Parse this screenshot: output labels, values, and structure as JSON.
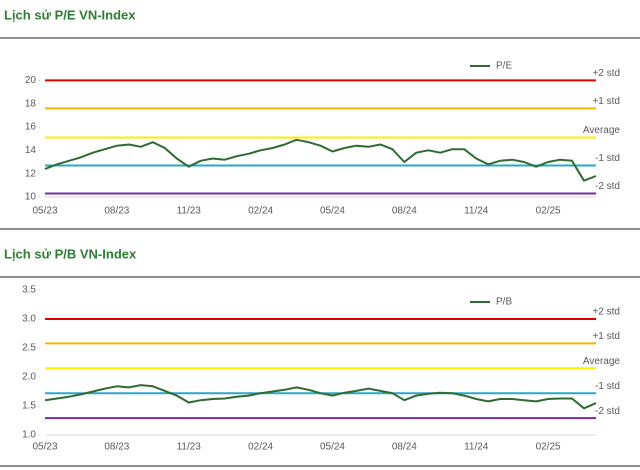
{
  "chart_data": [
    {
      "type": "line",
      "title": "Lịch sử P/E VN-Index",
      "categories": [
        "05/23",
        null,
        null,
        null,
        null,
        null,
        "08/23",
        null,
        null,
        null,
        null,
        null,
        "11/23",
        null,
        null,
        null,
        null,
        null,
        "02/24",
        null,
        null,
        null,
        null,
        null,
        "05/24",
        null,
        null,
        null,
        null,
        null,
        "08/24",
        null,
        null,
        null,
        null,
        null,
        "11/24",
        null,
        null,
        null,
        null,
        null,
        "02/25",
        null,
        null,
        null,
        null
      ],
      "series": [
        {
          "name": "P/E",
          "color": "#2e6b30",
          "values": [
            12.4,
            12.8,
            13.1,
            13.4,
            13.8,
            14.1,
            14.4,
            14.5,
            14.3,
            14.7,
            14.2,
            13.3,
            12.6,
            13.1,
            13.3,
            13.2,
            13.5,
            13.7,
            14.0,
            14.2,
            14.5,
            14.9,
            14.7,
            14.4,
            13.9,
            14.2,
            14.4,
            14.3,
            14.5,
            14.1,
            13.0,
            13.8,
            14.0,
            13.8,
            14.1,
            14.1,
            13.3,
            12.8,
            13.1,
            13.2,
            13.0,
            12.6,
            13.0,
            13.2,
            13.1,
            11.4,
            11.8
          ]
        }
      ],
      "reference_lines": [
        {
          "label": "+2 std",
          "value": 20,
          "color": "#e00000"
        },
        {
          "label": "+1 std",
          "value": 17.6,
          "color": "#f5b800"
        },
        {
          "label": "Average",
          "value": 15.1,
          "color": "#ffee00"
        },
        {
          "label": "-1 std",
          "value": 12.7,
          "color": "#2aa7c9"
        },
        {
          "label": "-2 std",
          "value": 10.3,
          "color": "#7030a0"
        }
      ],
      "ylim": [
        10,
        22
      ],
      "yticks": [
        10,
        12,
        14,
        16,
        18,
        20
      ]
    },
    {
      "type": "line",
      "title": "Lịch sử P/B VN-Index",
      "categories": [
        "05/23",
        null,
        null,
        null,
        null,
        null,
        "08/23",
        null,
        null,
        null,
        null,
        null,
        "11/23",
        null,
        null,
        null,
        null,
        null,
        "02/24",
        null,
        null,
        null,
        null,
        null,
        "05/24",
        null,
        null,
        null,
        null,
        null,
        "08/24",
        null,
        null,
        null,
        null,
        null,
        "11/24",
        null,
        null,
        null,
        null,
        null,
        "02/25",
        null,
        null,
        null,
        null
      ],
      "series": [
        {
          "name": "P/B",
          "color": "#2e6b30",
          "values": [
            1.6,
            1.63,
            1.66,
            1.7,
            1.75,
            1.8,
            1.84,
            1.82,
            1.86,
            1.84,
            1.76,
            1.68,
            1.56,
            1.6,
            1.62,
            1.63,
            1.66,
            1.68,
            1.72,
            1.75,
            1.78,
            1.82,
            1.78,
            1.72,
            1.68,
            1.73,
            1.76,
            1.8,
            1.76,
            1.72,
            1.6,
            1.68,
            1.71,
            1.73,
            1.72,
            1.68,
            1.62,
            1.58,
            1.62,
            1.62,
            1.6,
            1.58,
            1.62,
            1.63,
            1.63,
            1.46,
            1.55
          ]
        }
      ],
      "reference_lines": [
        {
          "label": "+2 std",
          "value": 3.0,
          "color": "#e00000"
        },
        {
          "label": "+1 std",
          "value": 2.58,
          "color": "#f5b800"
        },
        {
          "label": "Average",
          "value": 2.15,
          "color": "#ffee00"
        },
        {
          "label": "-1 std",
          "value": 1.72,
          "color": "#2aa7c9"
        },
        {
          "label": "-2 std",
          "value": 1.29,
          "color": "#7030a0"
        }
      ],
      "ylim": [
        1,
        3.5
      ],
      "yticks": [
        {
          "value": 1,
          "label": "1.0"
        },
        {
          "value": 1.5,
          "label": "1.5"
        },
        {
          "value": 2,
          "label": "2.0"
        },
        {
          "value": 2.5,
          "label": "2.5"
        },
        {
          "value": 3,
          "label": "3.0"
        },
        {
          "value": 3.5,
          "label": "3.5"
        }
      ]
    }
  ]
}
